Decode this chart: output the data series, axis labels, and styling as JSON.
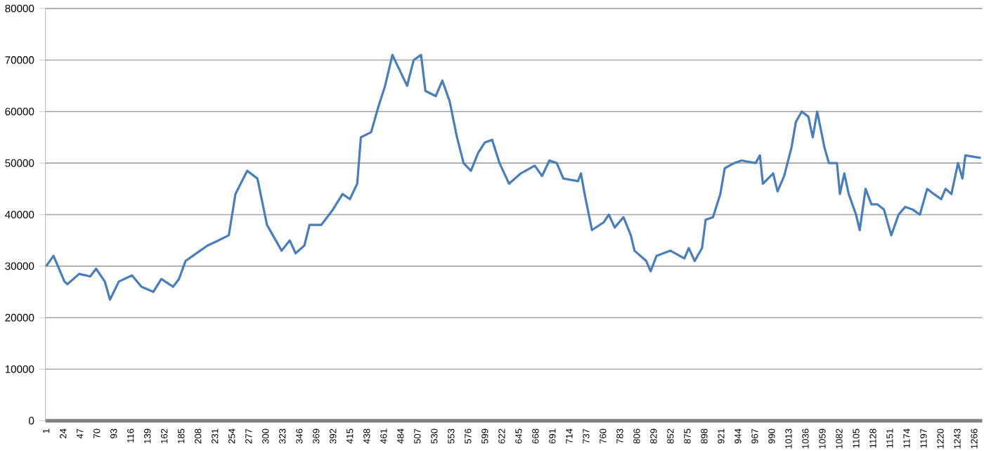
{
  "chart_data": {
    "type": "line",
    "color": "#4a7ebb",
    "grid": "y",
    "marker": "none",
    "line_style": "solid",
    "xlim": [
      0,
      1277
    ],
    "ylim": [
      0,
      80000
    ],
    "xticks": [
      1,
      24,
      47,
      70,
      93,
      116,
      139,
      162,
      185,
      208,
      231,
      254,
      277,
      300,
      323,
      346,
      369,
      392,
      415,
      438,
      461,
      484,
      507,
      530,
      553,
      576,
      599,
      622,
      645,
      668,
      691,
      714,
      737,
      760,
      783,
      806,
      829,
      852,
      875,
      898,
      921,
      944,
      967,
      990,
      1013,
      1036,
      1059,
      1082,
      1105,
      1128,
      1151,
      1174,
      1197,
      1220,
      1243,
      1266
    ],
    "yticks": [
      0,
      10000,
      20000,
      30000,
      40000,
      50000,
      60000,
      70000,
      80000
    ],
    "x": [
      1,
      11,
      26,
      30,
      46,
      61,
      69,
      81,
      88,
      100,
      118,
      131,
      147,
      158,
      174,
      182,
      191,
      201,
      221,
      236,
      250,
      259,
      275,
      289,
      302,
      314,
      322,
      333,
      341,
      353,
      360,
      376,
      392,
      405,
      415,
      425,
      430,
      444,
      454,
      463,
      473,
      483,
      493,
      502,
      512,
      518,
      532,
      541,
      551,
      561,
      570,
      580,
      590,
      599,
      609,
      619,
      632,
      648,
      667,
      677,
      687,
      697,
      706,
      726,
      730,
      735,
      745,
      761,
      768,
      776,
      788,
      798,
      803,
      819,
      825,
      833,
      852,
      871,
      877,
      885,
      895,
      900,
      910,
      920,
      926,
      939,
      949,
      968,
      974,
      978,
      992,
      998,
      1007,
      1017,
      1023,
      1031,
      1040,
      1046,
      1052,
      1062,
      1068,
      1079,
      1083,
      1089,
      1095,
      1105,
      1110,
      1118,
      1126,
      1134,
      1143,
      1153,
      1163,
      1172,
      1182,
      1192,
      1202,
      1211,
      1221,
      1227,
      1235,
      1244,
      1250,
      1254,
      1275
    ],
    "values": [
      30000,
      32000,
      27000,
      26500,
      28500,
      28000,
      29500,
      27000,
      23500,
      27000,
      28200,
      26000,
      25000,
      27500,
      26000,
      27500,
      31000,
      32000,
      34000,
      35000,
      36000,
      44000,
      48500,
      47000,
      38000,
      35000,
      33000,
      35000,
      32500,
      34000,
      38000,
      38000,
      41000,
      44000,
      43000,
      46000,
      55000,
      56000,
      61000,
      65000,
      71000,
      68000,
      65000,
      70000,
      71000,
      64000,
      63000,
      66000,
      62000,
      55000,
      50000,
      48500,
      52000,
      54000,
      54500,
      50000,
      46000,
      48000,
      49500,
      47500,
      50500,
      50000,
      47000,
      46500,
      48000,
      44000,
      37000,
      38500,
      40000,
      37500,
      39500,
      36000,
      33000,
      31000,
      29000,
      32000,
      33000,
      31500,
      33500,
      31000,
      33500,
      39000,
      39500,
      44000,
      49000,
      50000,
      50500,
      50000,
      51500,
      46000,
      48000,
      44500,
      47500,
      53000,
      58000,
      60000,
      59000,
      55000,
      60000,
      53000,
      50000,
      50000,
      44000,
      48000,
      44000,
      40000,
      37000,
      45000,
      42000,
      42000,
      41000,
      36000,
      40000,
      41500,
      41000,
      40000,
      45000,
      44000,
      43000,
      45000,
      44000,
      50000,
      47000,
      51500,
      51000
    ]
  }
}
